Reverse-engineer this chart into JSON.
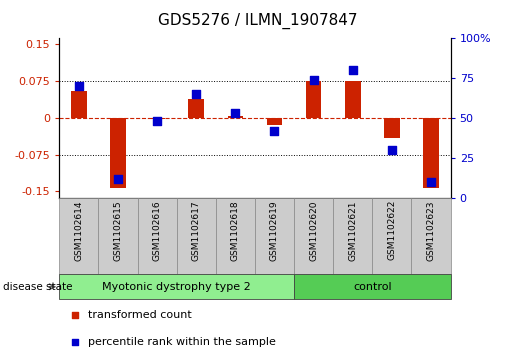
{
  "title": "GDS5276 / ILMN_1907847",
  "samples": [
    "GSM1102614",
    "GSM1102615",
    "GSM1102616",
    "GSM1102617",
    "GSM1102618",
    "GSM1102619",
    "GSM1102620",
    "GSM1102621",
    "GSM1102622",
    "GSM1102623"
  ],
  "transformed_count": [
    0.055,
    -0.143,
    -0.003,
    0.038,
    0.005,
    -0.015,
    0.075,
    0.075,
    -0.04,
    -0.143
  ],
  "percentile_rank": [
    70,
    12,
    48,
    65,
    53,
    42,
    74,
    80,
    30,
    10
  ],
  "bar_color": "#cc2200",
  "dot_color": "#0000cc",
  "left_ylim": [
    -0.163,
    0.163
  ],
  "right_ylim": [
    0,
    100
  ],
  "left_yticks": [
    -0.15,
    -0.075,
    0,
    0.075,
    0.15
  ],
  "right_yticks": [
    0,
    25,
    50,
    75,
    100
  ],
  "left_ytick_labels": [
    "-0.15",
    "-0.075",
    "0",
    "0.075",
    "0.15"
  ],
  "right_ytick_labels": [
    "0",
    "25",
    "50",
    "75",
    "100%"
  ],
  "hline_dotted": [
    -0.075,
    0.075
  ],
  "hline_dashed": 0,
  "groups": [
    {
      "label": "Myotonic dystrophy type 2",
      "start": 0,
      "end": 5,
      "color": "#90ee90"
    },
    {
      "label": "control",
      "start": 6,
      "end": 9,
      "color": "#55cc55"
    }
  ],
  "group_label": "disease state",
  "legend_items": [
    {
      "label": "transformed count",
      "color": "#cc2200"
    },
    {
      "label": "percentile rank within the sample",
      "color": "#0000cc"
    }
  ],
  "bar_width": 0.4,
  "dot_size": 28,
  "tick_label_fontsize": 8,
  "title_fontsize": 11,
  "sample_label_fontsize": 6.5,
  "group_label_fontsize": 8,
  "legend_fontsize": 8,
  "label_area_color": "#cccccc",
  "group_area_border_color": "#444444"
}
